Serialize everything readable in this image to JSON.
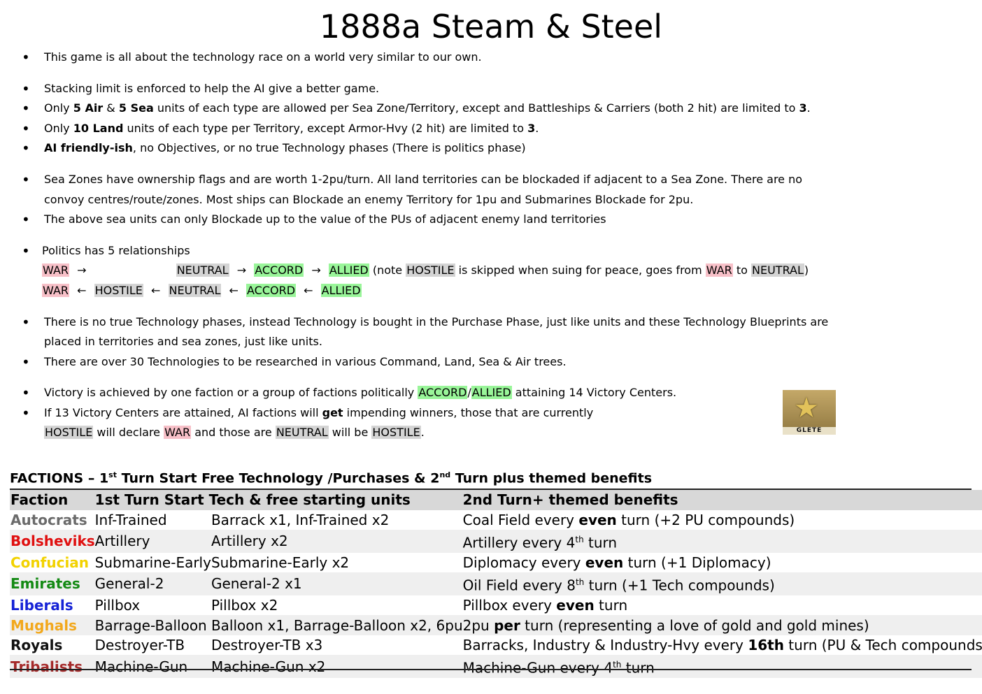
{
  "title": "1888a Steam & Steel",
  "bullet": "•",
  "intro": "This game is all about the technology race on a world very similar to our own.",
  "stacking": {
    "line1": "Stacking limit is enforced to help the AI give a better game.",
    "line2_a": "Only ",
    "line2_b": "5 Air",
    "line2_c": " & ",
    "line2_d": "5 Sea",
    "line2_e": " units of each type are allowed per Sea Zone/Territory, except and Battleships & Carriers (both 2 hit) are limited to ",
    "line2_f": "3",
    "line2_g": ".",
    "line3_a": "Only ",
    "line3_b": "10 Land",
    "line3_c": " units of each type per Territory, except Armor-Hvy (2 hit) are limited to ",
    "line3_d": "3",
    "line3_e": ".",
    "line4_a": "AI friendly-ish",
    "line4_b": ", no Objectives, or no true Technology phases   (There is politics phase)"
  },
  "seazones": {
    "line1": "Sea Zones have ownership flags and are worth 1-2pu/turn.  All land territories can be blockaded if adjacent to a Sea Zone.  There are no",
    "line1b": "convoy centres/route/zones. Most ships can Blockade an enemy Territory for 1pu and Submarines Blockade for 2pu.",
    "line2": "The above sea units can only Blockade up to the value of the PUs of adjacent enemy land territories"
  },
  "politics": {
    "header": "Politics has 5 relationships",
    "war": "WAR",
    "neutral": "NEUTRAL",
    "accord": "ACCORD",
    "allied": "ALLIED",
    "hostile": "HOSTILE",
    "arrow_right": "→",
    "arrow_left": "←",
    "note_a": " (note ",
    "note_b": " is skipped when suing for peace, goes from ",
    "note_c": " to ",
    "note_d": ")"
  },
  "tech": {
    "line1": "There is no true Technology phases, instead Technology is bought in the Purchase Phase, just like units and these Technology Blueprints are",
    "line1b": "placed in territories and sea zones, just like units.",
    "line2": "There are over 30 Technologies to be researched in various Command, Land, Sea & Air trees."
  },
  "victory": {
    "line1_a": "Victory is achieved by one faction or a group of factions politically ",
    "slash": "/",
    "line1_b": " attaining 14 Victory Centers.",
    "line2_a": " If 13 Victory Centers are attained, AI factions will ",
    "line2_b": "get",
    "line2_c": " impending winners, those that are currently",
    "line3_a": " will declare ",
    "line3_b": " and those are ",
    "line3_c": " will be ",
    "line3_d": "."
  },
  "factions_header": {
    "a": "FACTIONS – 1",
    "sup1": "st",
    "b": " Turn Start Free Technology /Purchases & 2",
    "sup2": "nd",
    "c": " Turn plus themed benefits"
  },
  "table": {
    "headers": [
      "Faction",
      "1st Turn Start Tech & free starting units",
      "",
      "2nd Turn+ themed benefits"
    ],
    "rows": [
      {
        "faction": "Autocrats",
        "color": "#6b6b6b",
        "tech": "Inf-Trained",
        "units": "Barrack x1, Inf-Trained x2",
        "b1": "Coal Field every ",
        "b2": "even",
        "b3": " turn  (+2 PU compounds)",
        "sup": ""
      },
      {
        "faction": "Bolsheviks",
        "color": "#e01010",
        "tech": "Artillery",
        "units": "Artillery x2",
        "b1": "Artillery every 4",
        "b2": "",
        "b3": " turn",
        "sup": "th"
      },
      {
        "faction": "Confucian",
        "color": "#f2d200",
        "tech": "Submarine-Early",
        "units": "Submarine-Early x2",
        "b1": "Diplomacy every ",
        "b2": "even",
        "b3": " turn (+1 Diplomacy)",
        "sup": ""
      },
      {
        "faction": "Emirates",
        "color": "#148a14",
        "tech": "General-2",
        "units": "General-2 x1",
        "b1": "Oil Field every 8",
        "b2": "",
        "b3": " turn (+1 Tech compounds)",
        "sup": "th"
      },
      {
        "faction": "Liberals",
        "color": "#1522d6",
        "tech": "Pillbox",
        "units": "Pillbox x2",
        "b1": "Pillbox every ",
        "b2": "even",
        "b3": " turn",
        "sup": ""
      },
      {
        "faction": "Mughals",
        "color": "#f2a81d",
        "tech": "Barrage-Balloon",
        "units": "Balloon x1, Barrage-Balloon x2, 6pu",
        "b1": "2pu ",
        "b2": "per",
        "b3": " turn (representing a love of gold and gold mines)",
        "sup": ""
      },
      {
        "faction": "Royals",
        "color": "#111111",
        "tech": "Destroyer-TB",
        "units": "Destroyer-TB x3",
        "b1": "Barracks, Industry & Industry-Hvy every ",
        "b2": "16th",
        "b3": " turn (PU & Tech compounds)",
        "sup": ""
      },
      {
        "faction": "Tribalists",
        "color": "#a52a2a",
        "tech": "Machine-Gun",
        "units": "Machine-Gun x2",
        "b1": "Machine-Gun every 4",
        "b2": "",
        "b3": " turn",
        "sup": "th"
      }
    ]
  },
  "emblem_text": "GLETE"
}
